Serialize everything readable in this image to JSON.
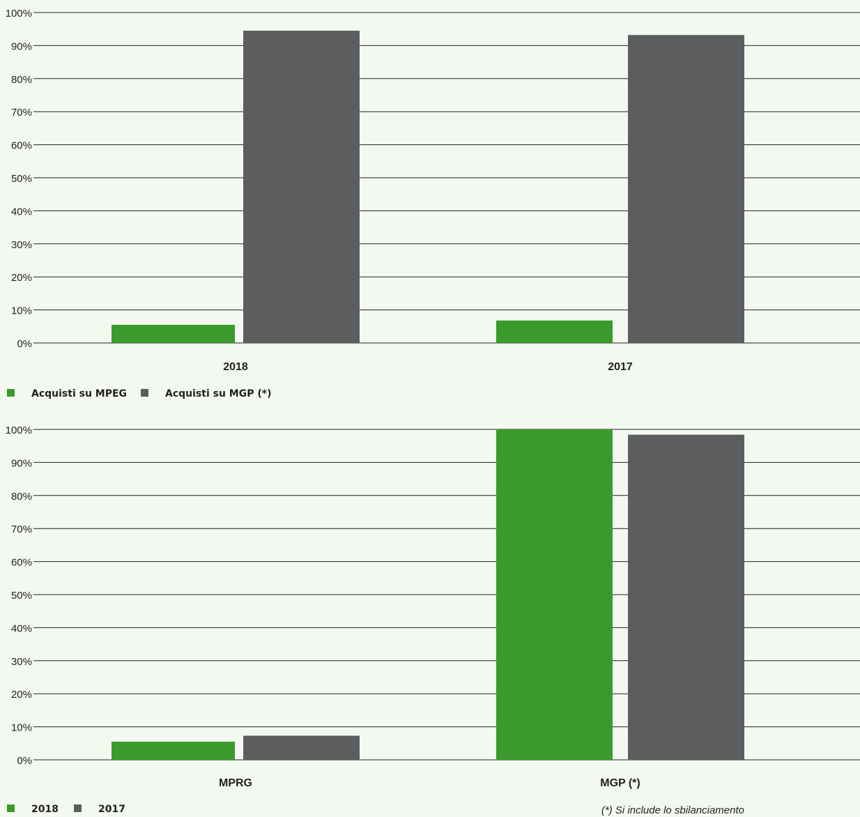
{
  "colors": {
    "background": "#f3f8f1",
    "green": "#3a9a2b",
    "grey": "#5c5d5f",
    "grid": "#231f20"
  },
  "chart_data": [
    {
      "type": "bar",
      "categories": [
        "2018",
        "2017"
      ],
      "series": [
        {
          "name": "Acquisti su MPEG",
          "color": "#3a9a2b",
          "values": [
            5.5,
            6.8
          ]
        },
        {
          "name": "Acquisti su MGP (*)",
          "color": "#5c5d5f",
          "values": [
            94.5,
            93.2
          ]
        }
      ],
      "yticks": [
        "0%",
        "10%",
        "20%",
        "30%",
        "40%",
        "50%",
        "60%",
        "70%",
        "80%",
        "90%",
        "100%"
      ],
      "ylim": [
        0,
        100
      ],
      "grid": true,
      "legend": "bottom-left"
    },
    {
      "type": "bar",
      "categories": [
        "MPRG",
        "MGP (*)"
      ],
      "series": [
        {
          "name": "2018",
          "color": "#3a9a2b",
          "values": [
            5.5,
            100
          ]
        },
        {
          "name": "2017",
          "color": "#5c5d5f",
          "values": [
            7.3,
            98.4
          ]
        }
      ],
      "yticks": [
        "0%",
        "10%",
        "20%",
        "30%",
        "40%",
        "50%",
        "60%",
        "70%",
        "80%",
        "90%",
        "100%"
      ],
      "ylim": [
        0,
        100
      ],
      "grid": true,
      "legend": "bottom-left",
      "footnote": "(*) Si include lo sbilanciamento"
    }
  ]
}
